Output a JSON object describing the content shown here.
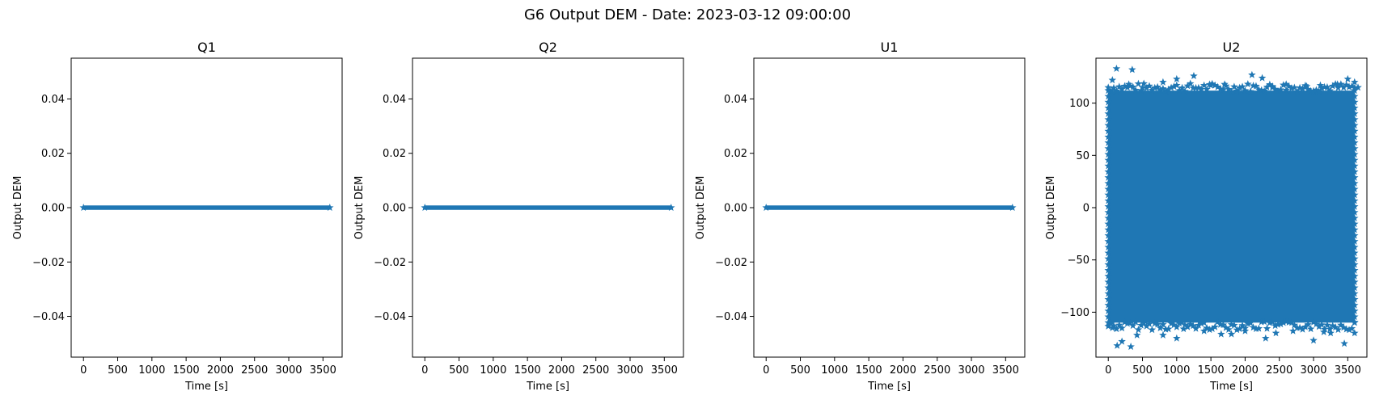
{
  "figure": {
    "suptitle": "G6 Output DEM - Date: 2023-03-12 09:00:00"
  },
  "chart_data": [
    {
      "type": "scatter",
      "title": "Q1",
      "xlabel": "Time [s]",
      "ylabel": "Output DEM",
      "xlim": [
        -180,
        3780
      ],
      "ylim": [
        -0.055,
        0.055
      ],
      "xticks": [
        0,
        500,
        1000,
        1500,
        2000,
        2500,
        3000,
        3500
      ],
      "xtick_labels": [
        "0",
        "500",
        "1000",
        "1500",
        "2000",
        "2500",
        "3000",
        "3500"
      ],
      "yticks": [
        -0.04,
        -0.02,
        0.0,
        0.02,
        0.04
      ],
      "ytick_labels": [
        "−0.04",
        "−0.02",
        "0.00",
        "0.02",
        "0.04"
      ],
      "marker": "star",
      "color": "#1f77b4",
      "x_range": [
        0,
        3600
      ],
      "y_band": [
        0,
        0
      ],
      "outliers": []
    },
    {
      "type": "scatter",
      "title": "Q2",
      "xlabel": "Time [s]",
      "ylabel": "Output DEM",
      "xlim": [
        -180,
        3780
      ],
      "ylim": [
        -0.055,
        0.055
      ],
      "xticks": [
        0,
        500,
        1000,
        1500,
        2000,
        2500,
        3000,
        3500
      ],
      "xtick_labels": [
        "0",
        "500",
        "1000",
        "1500",
        "2000",
        "2500",
        "3000",
        "3500"
      ],
      "yticks": [
        -0.04,
        -0.02,
        0.0,
        0.02,
        0.04
      ],
      "ytick_labels": [
        "−0.04",
        "−0.02",
        "0.00",
        "0.02",
        "0.04"
      ],
      "marker": "star",
      "color": "#1f77b4",
      "x_range": [
        0,
        3600
      ],
      "y_band": [
        0,
        0
      ],
      "outliers": []
    },
    {
      "type": "scatter",
      "title": "U1",
      "xlabel": "Time [s]",
      "ylabel": "Output DEM",
      "xlim": [
        -180,
        3780
      ],
      "ylim": [
        -0.055,
        0.055
      ],
      "xticks": [
        0,
        500,
        1000,
        1500,
        2000,
        2500,
        3000,
        3500
      ],
      "xtick_labels": [
        "0",
        "500",
        "1000",
        "1500",
        "2000",
        "2500",
        "3000",
        "3500"
      ],
      "yticks": [
        -0.04,
        -0.02,
        0.0,
        0.02,
        0.04
      ],
      "ytick_labels": [
        "−0.04",
        "−0.02",
        "0.00",
        "0.02",
        "0.04"
      ],
      "marker": "star",
      "color": "#1f77b4",
      "x_range": [
        0,
        3600
      ],
      "y_band": [
        0,
        0
      ],
      "outliers": []
    },
    {
      "type": "scatter",
      "title": "U2",
      "xlabel": "Time [s]",
      "ylabel": "Output DEM",
      "xlim": [
        -180,
        3780
      ],
      "ylim": [
        -143,
        143
      ],
      "xticks": [
        0,
        500,
        1000,
        1500,
        2000,
        2500,
        3000,
        3500
      ],
      "xtick_labels": [
        "0",
        "500",
        "1000",
        "1500",
        "2000",
        "2500",
        "3000",
        "3500"
      ],
      "yticks": [
        -100,
        -50,
        0,
        50,
        100
      ],
      "ytick_labels": [
        "−100",
        "−50",
        "0",
        "50",
        "100"
      ],
      "marker": "star",
      "color": "#1f77b4",
      "x_range": [
        0,
        3600
      ],
      "y_band": [
        -110,
        112
      ],
      "outliers": [
        [
          120,
          133
        ],
        [
          350,
          132
        ],
        [
          60,
          122
        ],
        [
          300,
          118
        ],
        [
          800,
          120
        ],
        [
          1000,
          123
        ],
        [
          1250,
          126
        ],
        [
          1500,
          117
        ],
        [
          2100,
          127
        ],
        [
          2250,
          124
        ],
        [
          2600,
          118
        ],
        [
          2900,
          116
        ],
        [
          3350,
          118
        ],
        [
          3500,
          123
        ],
        [
          3600,
          120
        ],
        [
          130,
          -132
        ],
        [
          330,
          -133
        ],
        [
          60,
          -115
        ],
        [
          420,
          -122
        ],
        [
          800,
          -122
        ],
        [
          1000,
          -125
        ],
        [
          1400,
          -118
        ],
        [
          1800,
          -121
        ],
        [
          2000,
          -118
        ],
        [
          2300,
          -125
        ],
        [
          2700,
          -118
        ],
        [
          3000,
          -127
        ],
        [
          3250,
          -120
        ],
        [
          3450,
          -130
        ],
        [
          3600,
          -120
        ],
        [
          200,
          -128
        ],
        [
          1100,
          -116
        ],
        [
          1650,
          -121
        ],
        [
          2450,
          -120
        ],
        [
          3150,
          -119
        ],
        [
          500,
          115
        ],
        [
          1700,
          118
        ],
        [
          2400,
          116
        ],
        [
          3100,
          117
        ],
        [
          3650,
          115
        ]
      ]
    }
  ]
}
